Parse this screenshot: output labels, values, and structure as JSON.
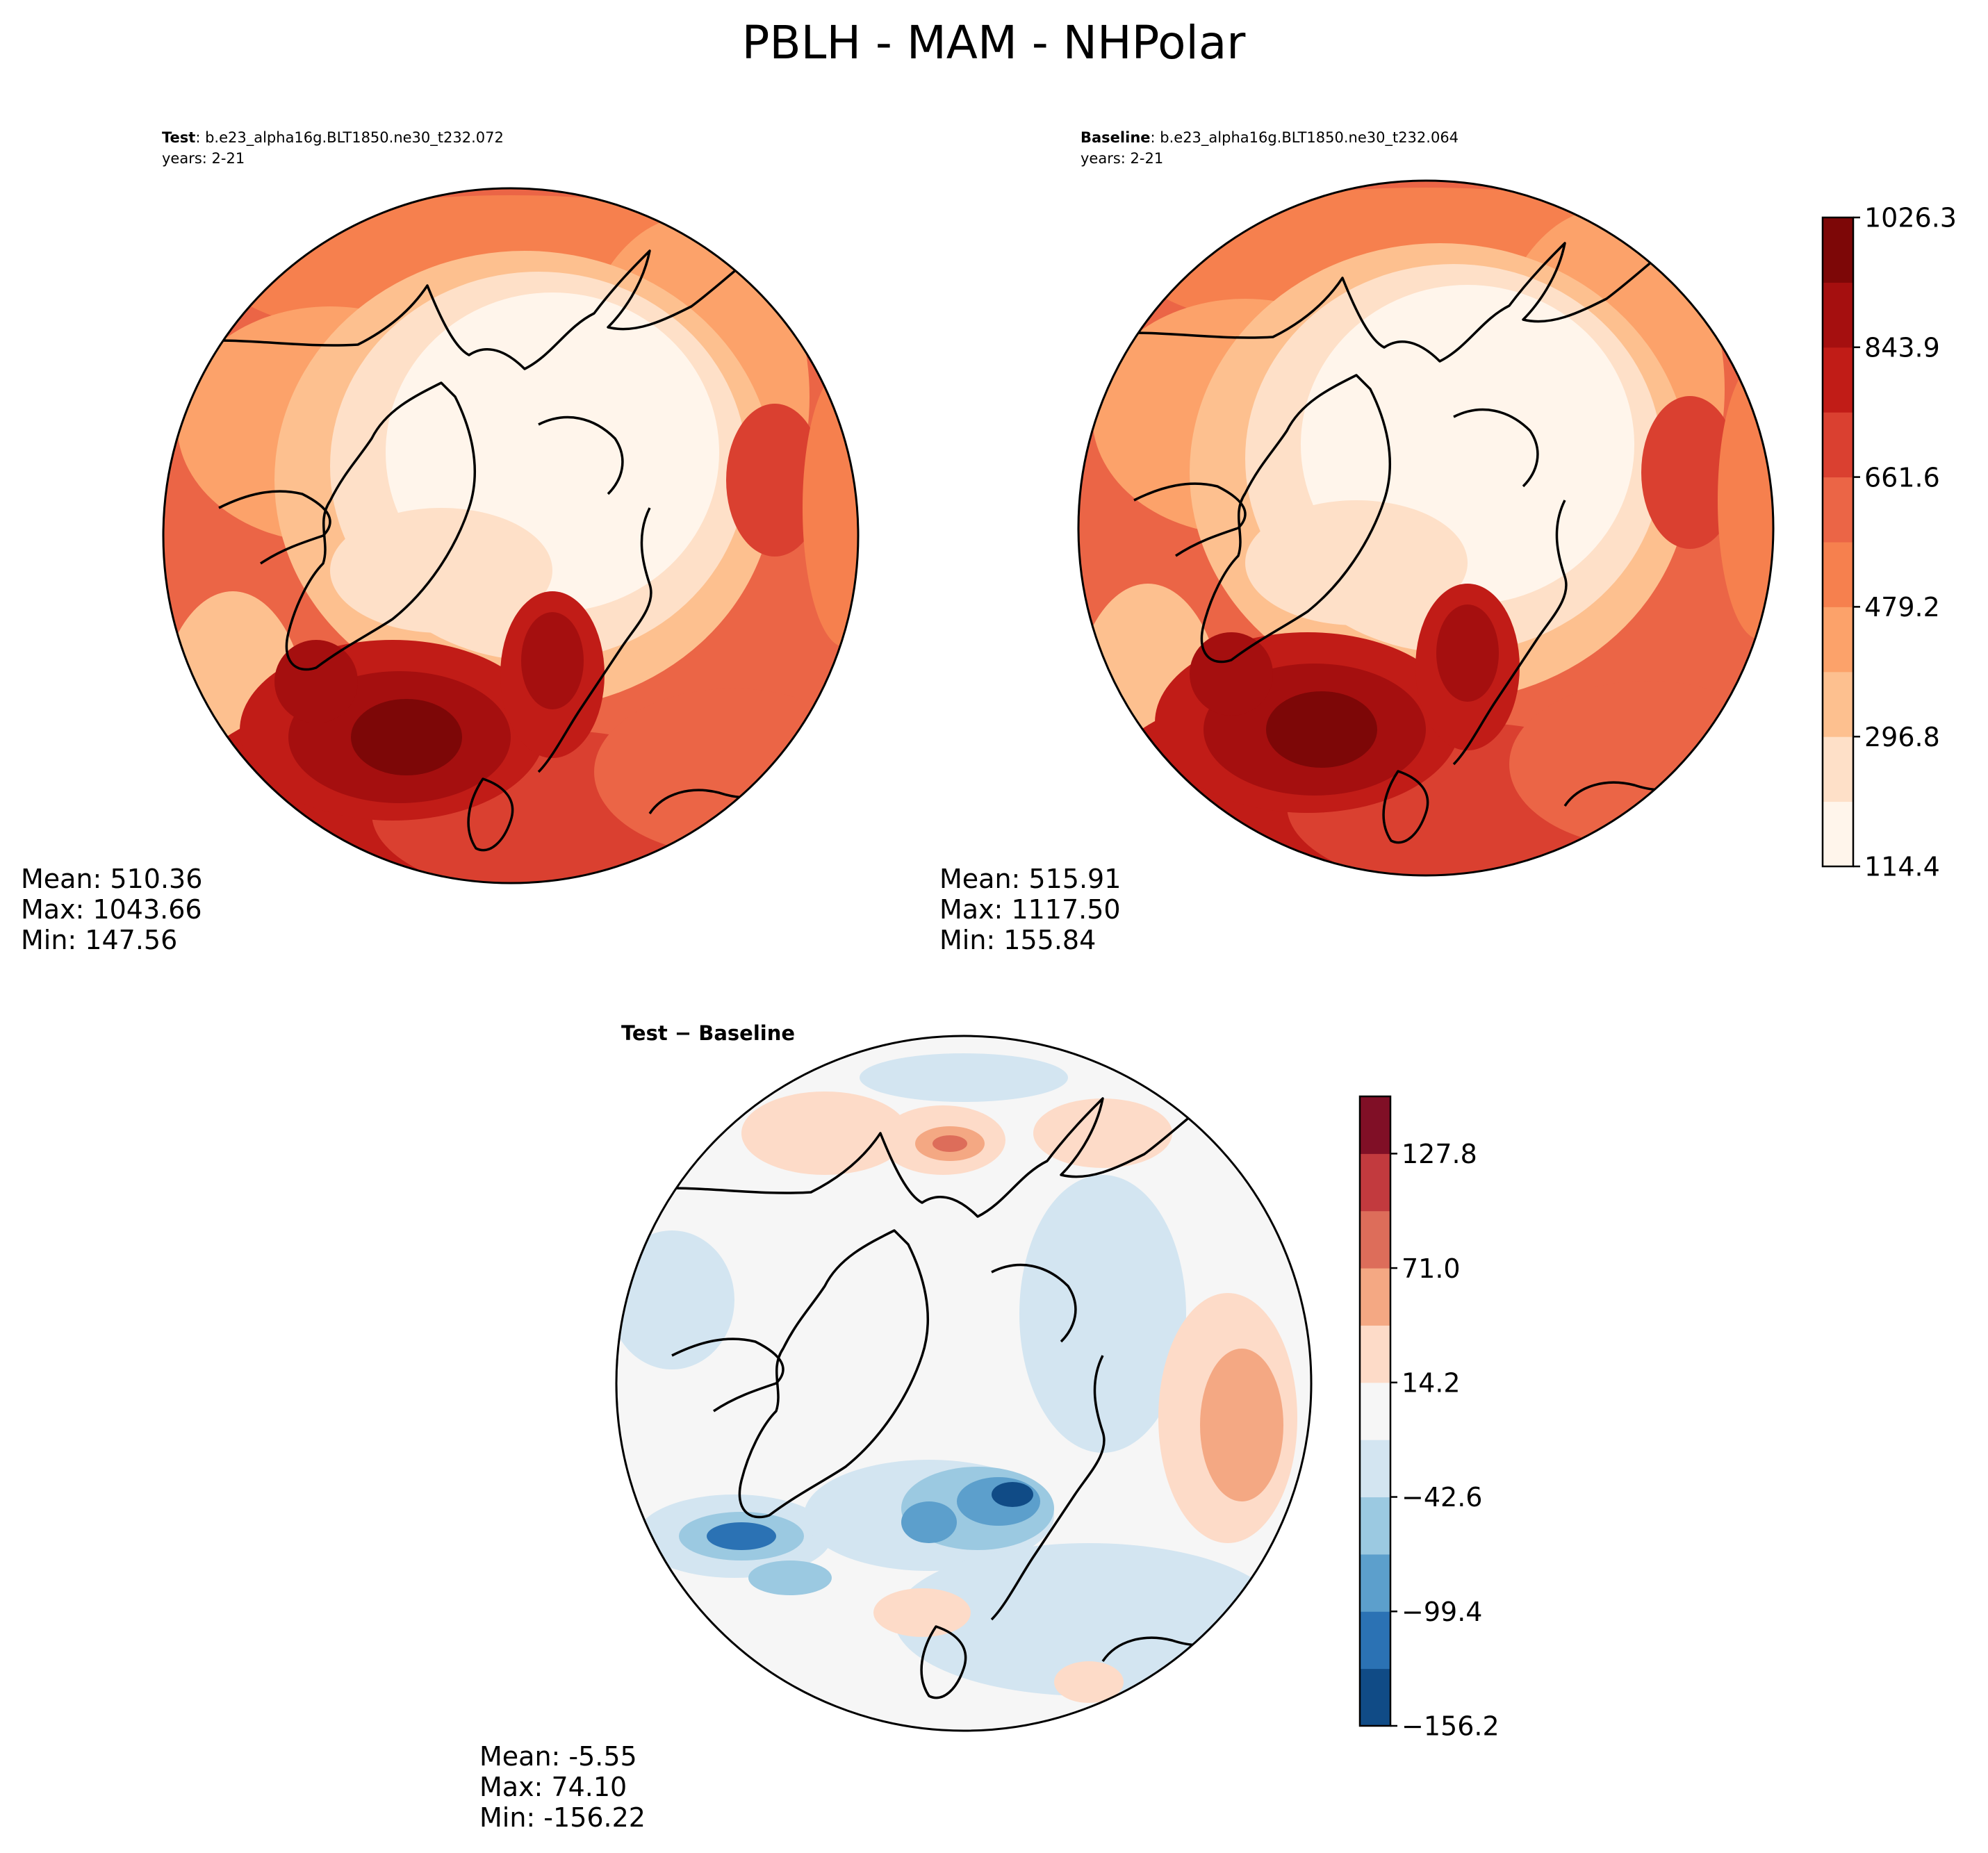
{
  "figure": {
    "title": "PBLH - MAM - NHPolar"
  },
  "panels": [
    {
      "id": "test",
      "label": "Test",
      "case": ": b.e23_alpha16g.BLT1850.ne30_t232.072",
      "years": "years: 2-21",
      "stats": {
        "mean": "Mean: 510.36",
        "max": "Max: 1043.66",
        "min": "Min: 147.56"
      }
    },
    {
      "id": "baseline",
      "label": "Baseline",
      "case": ": b.e23_alpha16g.BLT1850.ne30_t232.064",
      "years": "years: 2-21",
      "stats": {
        "mean": "Mean: 515.91",
        "max": "Max: 1117.50",
        "min": "Min: 155.84"
      }
    },
    {
      "id": "diff",
      "label": "Test − Baseline",
      "stats": {
        "mean": "Mean: -5.55",
        "max": "Max: 74.10",
        "min": "Min: -156.22"
      }
    }
  ],
  "colorbars": {
    "main": {
      "colors": [
        "#fff5eb",
        "#fee0c8",
        "#fdc08f",
        "#fca26a",
        "#f6804e",
        "#eb6546",
        "#da4030",
        "#c11c17",
        "#a50f0f",
        "#7d0707"
      ],
      "ticks": [
        "114.4",
        "296.8",
        "479.2",
        "661.6",
        "843.9",
        "1026.3"
      ]
    },
    "diff": {
      "colors": [
        "#104b86",
        "#2b72b4",
        "#5c9fcc",
        "#9bc9e1",
        "#d3e5f1",
        "#f6f6f6",
        "#fddbc8",
        "#f4a883",
        "#dd6d5a",
        "#c23a3e",
        "#800f26"
      ],
      "ticks": [
        "−156.2",
        "−99.4",
        "−42.6",
        "14.2",
        "71.0",
        "127.8"
      ]
    }
  }
}
